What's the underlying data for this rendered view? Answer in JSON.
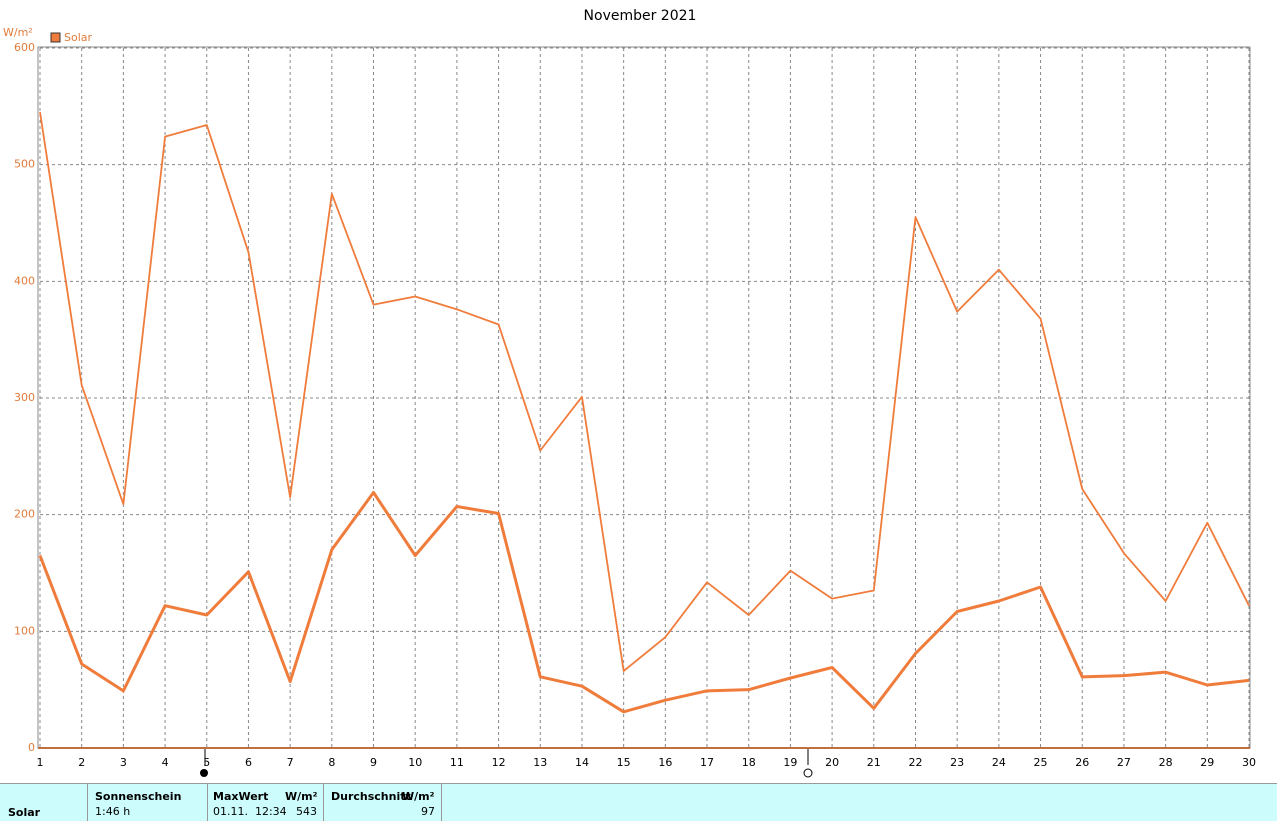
{
  "chart_data": {
    "type": "line",
    "title": "November 2021",
    "y_label": "W/m²",
    "x": [
      1,
      2,
      3,
      4,
      5,
      6,
      7,
      8,
      9,
      10,
      11,
      12,
      13,
      14,
      15,
      16,
      17,
      18,
      19,
      20,
      21,
      22,
      23,
      24,
      25,
      26,
      27,
      28,
      29,
      30
    ],
    "series": [
      {
        "name": "Solar",
        "color": "#f07c3c",
        "values": [
          545,
          311,
          209,
          524,
          534,
          425,
          215,
          475,
          380,
          387,
          376,
          363,
          255,
          301,
          66,
          95,
          142,
          114,
          152,
          128,
          135,
          455,
          374,
          410,
          368,
          222,
          167,
          126,
          193,
          122
        ]
      },
      {
        "color": "#f07c3c",
        "values": [
          165,
          72,
          49,
          122,
          114,
          151,
          57,
          170,
          219,
          165,
          207,
          201,
          61,
          53,
          31,
          41,
          49,
          50,
          60,
          69,
          34,
          81,
          117,
          126,
          138,
          61,
          62,
          65,
          54,
          58
        ]
      }
    ],
    "xlim": [
      1,
      30
    ],
    "xticks": [
      1,
      2,
      3,
      4,
      5,
      6,
      7,
      8,
      9,
      10,
      11,
      12,
      13,
      14,
      15,
      16,
      17,
      18,
      19,
      20,
      21,
      22,
      23,
      24,
      25,
      26,
      27,
      28,
      29,
      30
    ],
    "ylim": [
      0,
      600
    ],
    "yticks": [
      0,
      100,
      200,
      300,
      400,
      500,
      600
    ],
    "grid": true
  },
  "summary_table": {
    "headers": [
      "Sonnenschein",
      "MaxWert",
      "W/m²",
      "Durchschnitt",
      "W/m²"
    ],
    "row": [
      "Solar",
      "1:46 h",
      "01.11.  12:34",
      543,
      97
    ]
  }
}
